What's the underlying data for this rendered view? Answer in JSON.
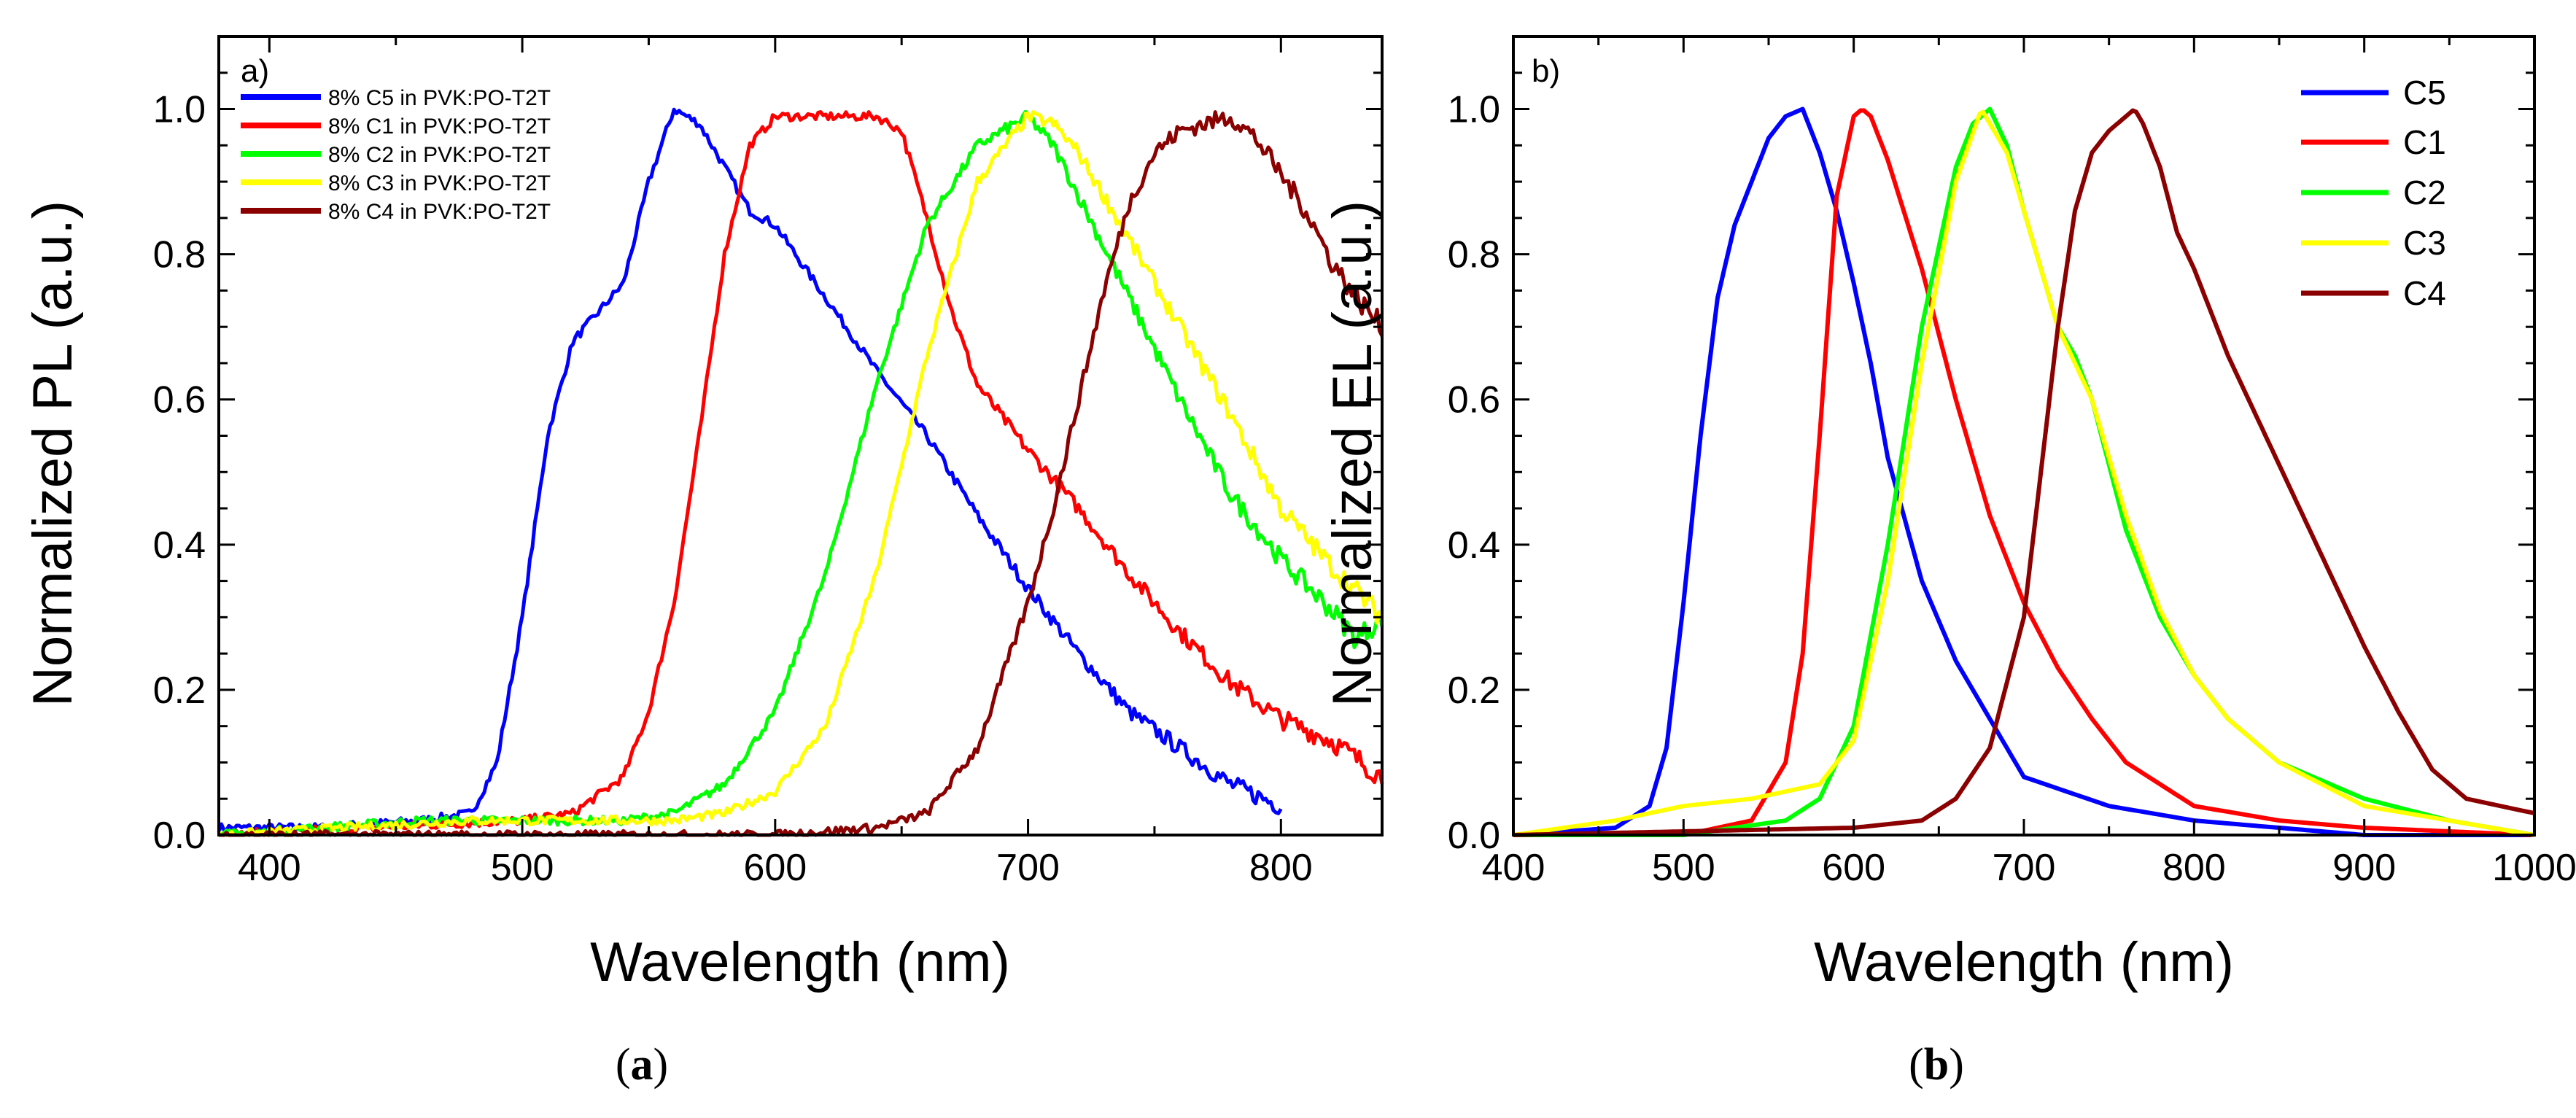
{
  "figure": {
    "captions": [
      {
        "open": "(",
        "letter": "a",
        "close": ")"
      },
      {
        "open": "(",
        "letter": "b",
        "close": ")"
      }
    ]
  },
  "chart_data": [
    {
      "type": "line",
      "panel": "a)",
      "title": "",
      "xlabel": "Wavelength (nm)",
      "ylabel": "Normalized PL (a.u.)",
      "xlim": [
        380,
        840
      ],
      "ylim": [
        0,
        1.1
      ],
      "xticks": [
        400,
        500,
        600,
        700,
        800
      ],
      "yticks": [
        0.0,
        0.2,
        0.4,
        0.6,
        0.8,
        1.0
      ],
      "xtick_labels": [
        "400",
        "500",
        "600",
        "700",
        "800"
      ],
      "ytick_labels": [
        "0.0",
        "0.2",
        "0.4",
        "0.6",
        "0.8",
        "1.0"
      ],
      "legend_position": "top-left",
      "grid": false,
      "series": [
        {
          "name": "8% C5 in PVK:PO-T2T",
          "color": "#0000ff",
          "x": [
            380,
            420,
            460,
            480,
            490,
            500,
            510,
            520,
            530,
            540,
            550,
            560,
            570,
            580,
            590,
            600,
            620,
            640,
            660,
            680,
            700,
            720,
            740,
            760,
            780,
            800
          ],
          "y": [
            0.01,
            0.01,
            0.02,
            0.03,
            0.1,
            0.3,
            0.55,
            0.68,
            0.72,
            0.76,
            0.9,
            1.0,
            0.98,
            0.92,
            0.86,
            0.84,
            0.74,
            0.64,
            0.55,
            0.44,
            0.34,
            0.25,
            0.17,
            0.12,
            0.07,
            0.04
          ]
        },
        {
          "name": "8% C1 in PVK:PO-T2T",
          "color": "#ff0000",
          "x": [
            380,
            440,
            500,
            520,
            540,
            550,
            560,
            570,
            580,
            590,
            600,
            610,
            620,
            640,
            650,
            660,
            670,
            680,
            700,
            720,
            740,
            760,
            780,
            800,
            820,
            840
          ],
          "y": [
            0.0,
            0.01,
            0.02,
            0.03,
            0.08,
            0.17,
            0.32,
            0.55,
            0.8,
            0.95,
            0.99,
            0.99,
            0.99,
            0.99,
            0.97,
            0.85,
            0.72,
            0.62,
            0.53,
            0.45,
            0.36,
            0.28,
            0.21,
            0.16,
            0.13,
            0.08
          ]
        },
        {
          "name": "8% C2 in PVK:PO-T2T",
          "color": "#00ff00",
          "x": [
            380,
            460,
            540,
            560,
            580,
            600,
            620,
            640,
            660,
            680,
            700,
            710,
            720,
            740,
            760,
            780,
            800,
            820,
            830,
            840
          ],
          "y": [
            0.0,
            0.02,
            0.02,
            0.03,
            0.07,
            0.17,
            0.36,
            0.62,
            0.84,
            0.95,
            0.99,
            0.95,
            0.88,
            0.74,
            0.6,
            0.47,
            0.38,
            0.31,
            0.27,
            0.3
          ]
        },
        {
          "name": "8% C3 in PVK:PO-T2T",
          "color": "#ffff00",
          "x": [
            380,
            480,
            560,
            580,
            600,
            620,
            640,
            660,
            680,
            700,
            710,
            720,
            740,
            760,
            780,
            800,
            820,
            840
          ],
          "y": [
            0.0,
            0.02,
            0.02,
            0.03,
            0.06,
            0.15,
            0.36,
            0.66,
            0.9,
            0.99,
            0.98,
            0.94,
            0.82,
            0.7,
            0.58,
            0.45,
            0.37,
            0.3
          ]
        },
        {
          "name": "8% C4 in PVK:PO-T2T",
          "color": "#8b0000",
          "x": [
            380,
            500,
            600,
            640,
            660,
            680,
            700,
            710,
            720,
            730,
            740,
            750,
            760,
            770,
            780,
            790,
            800,
            810,
            820,
            830,
            840
          ],
          "y": [
            0.0,
            0.0,
            0.0,
            0.01,
            0.03,
            0.12,
            0.32,
            0.45,
            0.6,
            0.75,
            0.87,
            0.94,
            0.97,
            0.98,
            0.99,
            0.96,
            0.91,
            0.86,
            0.79,
            0.74,
            0.7
          ]
        }
      ]
    },
    {
      "type": "line",
      "panel": "b)",
      "title": "",
      "xlabel": "Wavelength (nm)",
      "ylabel": "Normalized EL (a.u.)",
      "xlim": [
        400,
        1000
      ],
      "ylim": [
        0,
        1.1
      ],
      "xticks": [
        400,
        500,
        600,
        700,
        800,
        900,
        1000
      ],
      "yticks": [
        0.0,
        0.2,
        0.4,
        0.6,
        0.8,
        1.0
      ],
      "xtick_labels": [
        "400",
        "500",
        "600",
        "700",
        "800",
        "900",
        "1000"
      ],
      "ytick_labels": [
        "0.0",
        "0.2",
        "0.4",
        "0.6",
        "0.8",
        "1.0"
      ],
      "legend_position": "top-right",
      "grid": false,
      "series": [
        {
          "name": "C5",
          "color": "#0000ff",
          "x": [
            400,
            460,
            480,
            490,
            500,
            510,
            520,
            530,
            540,
            550,
            560,
            570,
            580,
            590,
            600,
            610,
            620,
            640,
            660,
            680,
            700,
            750,
            800,
            900,
            1000
          ],
          "y": [
            0.0,
            0.01,
            0.04,
            0.12,
            0.32,
            0.55,
            0.74,
            0.84,
            0.9,
            0.96,
            0.99,
            1.0,
            0.94,
            0.86,
            0.76,
            0.65,
            0.52,
            0.35,
            0.24,
            0.16,
            0.08,
            0.04,
            0.02,
            0.0,
            0.0
          ]
        },
        {
          "name": "C1",
          "color": "#ff0000",
          "x": [
            400,
            500,
            540,
            560,
            570,
            580,
            590,
            600,
            605,
            610,
            620,
            640,
            660,
            680,
            700,
            720,
            740,
            760,
            800,
            850,
            900,
            1000
          ],
          "y": [
            0.0,
            0.0,
            0.02,
            0.1,
            0.25,
            0.55,
            0.88,
            0.99,
            1.0,
            0.99,
            0.93,
            0.78,
            0.6,
            0.44,
            0.32,
            0.23,
            0.16,
            0.1,
            0.04,
            0.02,
            0.01,
            0.0
          ]
        },
        {
          "name": "C2",
          "color": "#00ff00",
          "x": [
            400,
            500,
            560,
            580,
            600,
            620,
            640,
            660,
            670,
            680,
            690,
            700,
            720,
            730,
            740,
            760,
            780,
            800,
            820,
            850,
            900,
            950,
            1000
          ],
          "y": [
            0.0,
            0.0,
            0.02,
            0.05,
            0.15,
            0.4,
            0.7,
            0.92,
            0.98,
            1.0,
            0.95,
            0.86,
            0.7,
            0.66,
            0.6,
            0.42,
            0.3,
            0.22,
            0.16,
            0.1,
            0.05,
            0.02,
            0.0
          ]
        },
        {
          "name": "C3",
          "color": "#ffff00",
          "x": [
            400,
            460,
            500,
            540,
            580,
            600,
            620,
            640,
            660,
            675,
            690,
            700,
            720,
            740,
            760,
            780,
            800,
            820,
            850,
            900,
            950,
            1000
          ],
          "y": [
            0.0,
            0.02,
            0.04,
            0.05,
            0.07,
            0.13,
            0.35,
            0.65,
            0.9,
            1.0,
            0.94,
            0.86,
            0.7,
            0.6,
            0.44,
            0.31,
            0.22,
            0.16,
            0.1,
            0.04,
            0.02,
            0.0
          ]
        },
        {
          "name": "C4",
          "color": "#8b0000",
          "x": [
            400,
            600,
            640,
            660,
            680,
            700,
            710,
            720,
            730,
            740,
            750,
            760,
            765,
            770,
            780,
            790,
            800,
            820,
            840,
            860,
            880,
            900,
            920,
            940,
            960,
            1000
          ],
          "y": [
            0.0,
            0.01,
            0.02,
            0.05,
            0.12,
            0.3,
            0.5,
            0.7,
            0.86,
            0.94,
            0.97,
            0.99,
            1.0,
            0.98,
            0.92,
            0.83,
            0.78,
            0.66,
            0.56,
            0.46,
            0.36,
            0.26,
            0.17,
            0.09,
            0.05,
            0.03
          ]
        }
      ]
    }
  ]
}
